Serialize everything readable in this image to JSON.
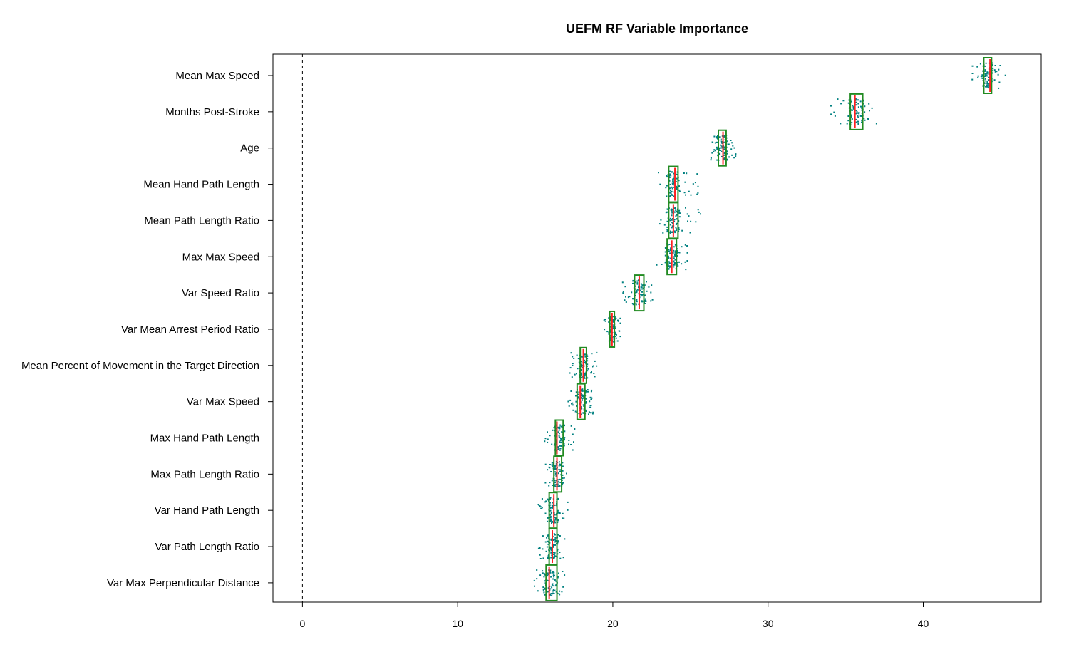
{
  "chart_data": {
    "type": "boxplot",
    "title": "UEFM RF Variable Importance",
    "orientation": "horizontal",
    "xlim": [
      -1.9,
      47.6
    ],
    "xticks": [
      0,
      10,
      20,
      30,
      40
    ],
    "reference_line": {
      "x": 0,
      "style": "dashed"
    },
    "colors": {
      "points": "#008080",
      "box": "#228b22",
      "median": "#ff2020",
      "frame": "#000000"
    },
    "variables": [
      {
        "label": "Mean Max Speed",
        "q1": 43.9,
        "median": 44.3,
        "q3": 44.4,
        "min": 43.1,
        "max": 45.3
      },
      {
        "label": "Months Post-Stroke",
        "q1": 35.3,
        "median": 35.6,
        "q3": 36.1,
        "min": 34.0,
        "max": 37.1
      },
      {
        "label": "Age",
        "q1": 26.8,
        "median": 27.1,
        "q3": 27.3,
        "min": 26.3,
        "max": 28.1
      },
      {
        "label": "Mean Hand Path Length",
        "q1": 23.6,
        "median": 24.0,
        "q3": 24.2,
        "min": 22.9,
        "max": 25.6
      },
      {
        "label": "Mean Path Length Ratio",
        "q1": 23.6,
        "median": 23.9,
        "q3": 24.2,
        "min": 23.0,
        "max": 25.7
      },
      {
        "label": "Max Max Speed",
        "q1": 23.5,
        "median": 23.8,
        "q3": 24.1,
        "min": 22.8,
        "max": 24.9
      },
      {
        "label": "Var Speed Ratio",
        "q1": 21.4,
        "median": 21.7,
        "q3": 22.0,
        "min": 20.6,
        "max": 22.6
      },
      {
        "label": "Var Mean Arrest Period Ratio",
        "q1": 19.8,
        "median": 19.95,
        "q3": 20.1,
        "min": 19.4,
        "max": 20.5
      },
      {
        "label": "Mean Percent of Movement in the Target Direction",
        "q1": 17.9,
        "median": 18.1,
        "q3": 18.3,
        "min": 17.2,
        "max": 19.0
      },
      {
        "label": "Var Max Speed",
        "q1": 17.7,
        "median": 17.9,
        "q3": 18.2,
        "min": 17.1,
        "max": 18.8
      },
      {
        "label": "Max Hand Path Length",
        "q1": 16.3,
        "median": 16.4,
        "q3": 16.8,
        "min": 15.6,
        "max": 17.6
      },
      {
        "label": "Max Path Length Ratio",
        "q1": 16.2,
        "median": 16.4,
        "q3": 16.7,
        "min": 15.6,
        "max": 17.1
      },
      {
        "label": "Var Hand Path Length",
        "q1": 15.9,
        "median": 16.2,
        "q3": 16.4,
        "min": 15.2,
        "max": 17.1
      },
      {
        "label": "Var Path Length Ratio",
        "q1": 15.9,
        "median": 16.1,
        "q3": 16.4,
        "min": 15.2,
        "max": 16.9
      },
      {
        "label": "Var Max Perpendicular Distance",
        "q1": 15.7,
        "median": 15.9,
        "q3": 16.4,
        "min": 14.9,
        "max": 16.9
      }
    ]
  }
}
